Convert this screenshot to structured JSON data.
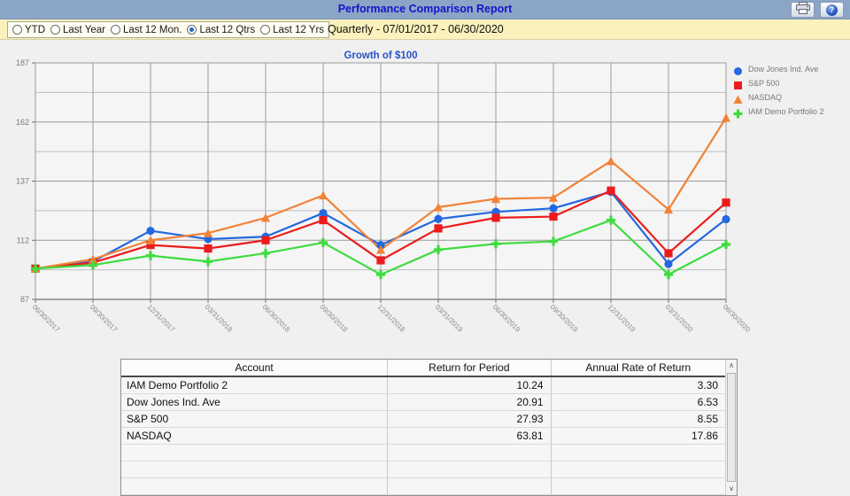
{
  "header": {
    "title": "Performance Comparison Report",
    "buttons": [
      {
        "name": "print-button",
        "icon": "printer-icon"
      },
      {
        "name": "help-button",
        "icon": "help-icon",
        "glyph": "?"
      }
    ]
  },
  "toolbar": {
    "options": [
      {
        "label": "YTD",
        "selected": false
      },
      {
        "label": "Last Year",
        "selected": false
      },
      {
        "label": "Last 12 Mon.",
        "selected": false
      },
      {
        "label": "Last 12 Qtrs",
        "selected": true
      },
      {
        "label": "Last 12 Yrs",
        "selected": false
      }
    ],
    "period_label": "Quarterly - 07/01/2017 - 06/30/2020"
  },
  "chart_data": {
    "type": "line",
    "title": "Growth of $100",
    "title_color": "#2A52C8",
    "grid": true,
    "legend_position": "right",
    "ylim": [
      87,
      187
    ],
    "y_ticks": [
      87,
      112,
      137,
      162,
      187
    ],
    "x_labels": [
      "06/30/2017",
      "09/30/2017",
      "12/31/2017",
      "03/31/2018",
      "06/30/2018",
      "09/30/2018",
      "12/31/2018",
      "03/31/2019",
      "06/30/2019",
      "09/30/2019",
      "12/31/2019",
      "03/31/2020",
      "06/30/2020"
    ],
    "series": [
      {
        "name": "Dow Jones Ind. Ave",
        "color": "#2468DF",
        "marker": "circle",
        "values": [
          100,
          103,
          116,
          112.5,
          113.5,
          123.5,
          110,
          121,
          124,
          125.5,
          132.5,
          102,
          120.91
        ]
      },
      {
        "name": "S&P 500",
        "color": "#EC1C1C",
        "marker": "square",
        "values": [
          100,
          102.5,
          110,
          108.5,
          112,
          120.5,
          103.5,
          117,
          121.5,
          122,
          133,
          106.5,
          127.93
        ]
      },
      {
        "name": "NASDAQ",
        "color": "#F28238",
        "marker": "triangle",
        "values": [
          100,
          104,
          112,
          115,
          121.5,
          131,
          108,
          126,
          129.5,
          130,
          145.5,
          125,
          163.81
        ]
      },
      {
        "name": "IAM Demo Portfolio 2",
        "color": "#3EDC3E",
        "marker": "plus",
        "values": [
          100,
          101.5,
          105.5,
          103,
          106.5,
          111,
          97.5,
          108,
          110.5,
          111.5,
          120.5,
          97.5,
          110.24
        ]
      }
    ]
  },
  "table": {
    "columns": [
      "Account",
      "Return for Period",
      "Annual Rate of Return"
    ],
    "rows": [
      {
        "account": "IAM Demo Portfolio 2",
        "return_for_period": "10.24",
        "annual_rate": "3.30"
      },
      {
        "account": "Dow Jones Ind. Ave",
        "return_for_period": "20.91",
        "annual_rate": "6.53"
      },
      {
        "account": "S&P 500",
        "return_for_period": "27.93",
        "annual_rate": "8.55"
      },
      {
        "account": "NASDAQ",
        "return_for_period": "63.81",
        "annual_rate": "17.86"
      }
    ],
    "empty_row_count": 4,
    "scrollbar": {
      "up_glyph": "∧",
      "down_glyph": "∨"
    }
  }
}
